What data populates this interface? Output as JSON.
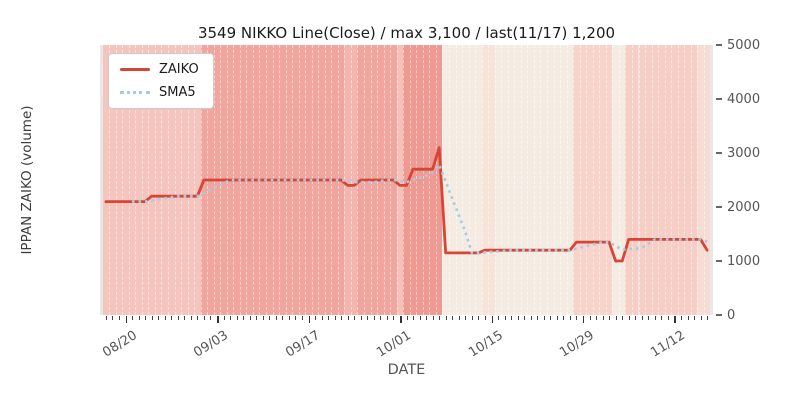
{
  "title": "3549 NIKKO Line(Close) / max 3,100 / last(11/17) 1,200",
  "xlabel": "DATE",
  "ylabel": "IPPAN ZAIKO (volume)",
  "legend": [
    {
      "label": "ZAIKO",
      "style": "solid",
      "color": "#d64535"
    },
    {
      "label": "SMA5",
      "style": "dotted",
      "color": "#a6cbe3"
    }
  ],
  "y_ticks": [
    {
      "label": "0",
      "value": 0
    },
    {
      "label": "1000",
      "value": 1000
    },
    {
      "label": "2000",
      "value": 2000
    },
    {
      "label": "3000",
      "value": 3000
    },
    {
      "label": "4000",
      "value": 4000
    },
    {
      "label": "5000",
      "value": 5000
    }
  ],
  "x_ticks": [
    {
      "label": "08/20",
      "day": 3
    },
    {
      "label": "09/03",
      "day": 17
    },
    {
      "label": "09/17",
      "day": 31
    },
    {
      "label": "10/01",
      "day": 45
    },
    {
      "label": "10/15",
      "day": 59
    },
    {
      "label": "10/29",
      "day": 73
    },
    {
      "label": "11/12",
      "day": 87
    }
  ],
  "chart_data": {
    "type": "line",
    "title": "3549 NIKKO Line(Close) / max 3,100 / last(11/17) 1,200",
    "xlabel": "DATE",
    "ylabel": "IPPAN ZAIKO (volume)",
    "start_date": "08/17",
    "end_date": "11/17",
    "days_total": 93,
    "ylim": [
      0,
      5000
    ],
    "max_value": 3100,
    "last_date": "11/17",
    "last_value": 1200,
    "legend_position": "upper-left",
    "grid": "vertical-daily-white-dashed",
    "series": [
      {
        "name": "ZAIKO",
        "color": "#d64535",
        "style": "solid",
        "start_day": 0,
        "values": [
          2100,
          2100,
          2100,
          2100,
          2100,
          2100,
          2100,
          2200,
          2200,
          2200,
          2200,
          2200,
          2200,
          2200,
          2200,
          2500,
          2500,
          2500,
          2500,
          2500,
          2500,
          2500,
          2500,
          2500,
          2500,
          2500,
          2500,
          2500,
          2500,
          2500,
          2500,
          2500,
          2500,
          2500,
          2500,
          2500,
          2500,
          2400,
          2400,
          2500,
          2500,
          2500,
          2500,
          2500,
          2500,
          2400,
          2400,
          2700,
          2700,
          2700,
          2700,
          3100,
          1150,
          1150,
          1150,
          1150,
          1150,
          1150,
          1200,
          1200,
          1200,
          1200,
          1200,
          1200,
          1200,
          1200,
          1200,
          1200,
          1200,
          1200,
          1200,
          1200,
          1350,
          1350,
          1350,
          1350,
          1350,
          1350,
          1000,
          1000,
          1400,
          1400,
          1400,
          1400,
          1400,
          1400,
          1400,
          1400,
          1400,
          1400,
          1400,
          1400,
          1200
        ]
      },
      {
        "name": "SMA5",
        "color": "#a6cbe3",
        "style": "dotted",
        "start_day": 4,
        "values": [
          2100,
          2100,
          2100,
          2120,
          2140,
          2160,
          2180,
          2200,
          2200,
          2200,
          2200,
          2260,
          2320,
          2380,
          2440,
          2500,
          2500,
          2500,
          2500,
          2500,
          2500,
          2500,
          2500,
          2500,
          2500,
          2500,
          2500,
          2500,
          2500,
          2500,
          2500,
          2500,
          2500,
          2480,
          2460,
          2460,
          2460,
          2460,
          2480,
          2500,
          2500,
          2480,
          2460,
          2500,
          2540,
          2580,
          2640,
          2780,
          2470,
          2160,
          1850,
          1540,
          1150,
          1150,
          1160,
          1170,
          1180,
          1190,
          1200,
          1200,
          1200,
          1200,
          1200,
          1200,
          1200,
          1200,
          1200,
          1200,
          1230,
          1260,
          1290,
          1320,
          1350,
          1350,
          1280,
          1210,
          1220,
          1230,
          1240,
          1320,
          1400,
          1400,
          1400,
          1400,
          1400,
          1400,
          1400,
          1400,
          1360
        ]
      }
    ],
    "background_bands": [
      {
        "from_day": 0,
        "to_day": 15,
        "color": "#f5c4bd"
      },
      {
        "from_day": 15,
        "to_day": 37,
        "color": "#f0a69e"
      },
      {
        "from_day": 37,
        "to_day": 39,
        "color": "#f3b6ae"
      },
      {
        "from_day": 39,
        "to_day": 45,
        "color": "#f0a69e"
      },
      {
        "from_day": 45,
        "to_day": 46,
        "color": "#f4c1b9"
      },
      {
        "from_day": 46,
        "to_day": 52,
        "color": "#ee9991"
      },
      {
        "from_day": 52,
        "to_day": 58,
        "color": "#f4ece2"
      },
      {
        "from_day": 58,
        "to_day": 60,
        "color": "#f7e3d9"
      },
      {
        "from_day": 60,
        "to_day": 72,
        "color": "#f4ece2"
      },
      {
        "from_day": 72,
        "to_day": 78,
        "color": "#f8d3cb"
      },
      {
        "from_day": 78,
        "to_day": 80,
        "color": "#f4ece2"
      },
      {
        "from_day": 80,
        "to_day": 91,
        "color": "#f7cec5"
      },
      {
        "from_day": 91,
        "to_day": 93,
        "color": "#f6dcd5"
      }
    ]
  }
}
